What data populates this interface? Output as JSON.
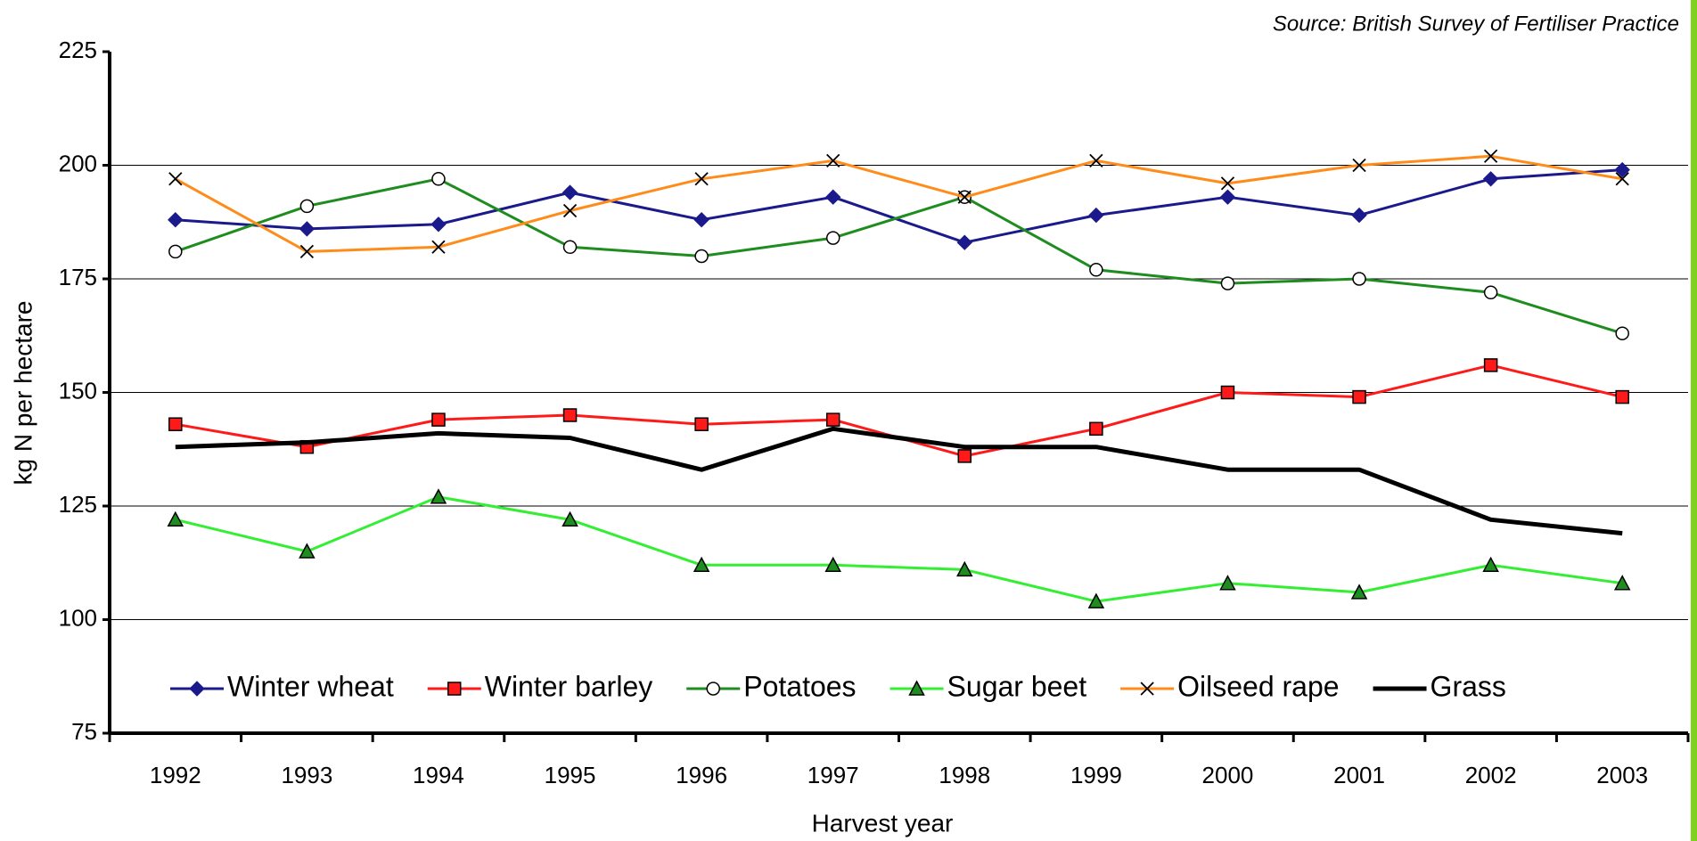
{
  "chart_data": {
    "type": "line",
    "source": "Source:  British Survey of Fertiliser Practice",
    "x_label": "Harvest year",
    "y_label": "kg N per hectare",
    "categories": [
      "1992",
      "1993",
      "1994",
      "1995",
      "1996",
      "1997",
      "1998",
      "1999",
      "2000",
      "2001",
      "2002",
      "2003"
    ],
    "ylim": [
      75,
      225
    ],
    "yticks": [
      75,
      100,
      125,
      150,
      175,
      200,
      225
    ],
    "grid": true,
    "legend": "bottom",
    "series": [
      {
        "name": "Winter wheat",
        "color": "#1a1a8c",
        "marker": "diamond",
        "values": [
          188,
          186,
          187,
          194,
          188,
          193,
          183,
          189,
          193,
          189,
          197,
          199
        ]
      },
      {
        "name": "Winter barley",
        "color": "#ff1a1a",
        "marker": "square",
        "values": [
          143,
          138,
          144,
          145,
          143,
          144,
          136,
          142,
          150,
          149,
          156,
          149
        ]
      },
      {
        "name": "Potatoes",
        "color": "#1e8c1e",
        "marker": "circle",
        "values": [
          181,
          191,
          197,
          182,
          180,
          184,
          193,
          177,
          174,
          175,
          172,
          163
        ]
      },
      {
        "name": "Sugar beet",
        "color": "#33ee33",
        "marker": "triangle",
        "values": [
          122,
          115,
          127,
          122,
          112,
          112,
          111,
          104,
          108,
          106,
          112,
          108
        ]
      },
      {
        "name": "Oilseed rape",
        "color": "#ff8c1a",
        "marker": "cross",
        "values": [
          197,
          181,
          182,
          190,
          197,
          201,
          193,
          201,
          196,
          200,
          202,
          197
        ]
      },
      {
        "name": "Grass",
        "color": "#000000",
        "marker": "none",
        "values": [
          138,
          139,
          141,
          140,
          133,
          142,
          138,
          138,
          133,
          133,
          122,
          119
        ]
      }
    ]
  }
}
